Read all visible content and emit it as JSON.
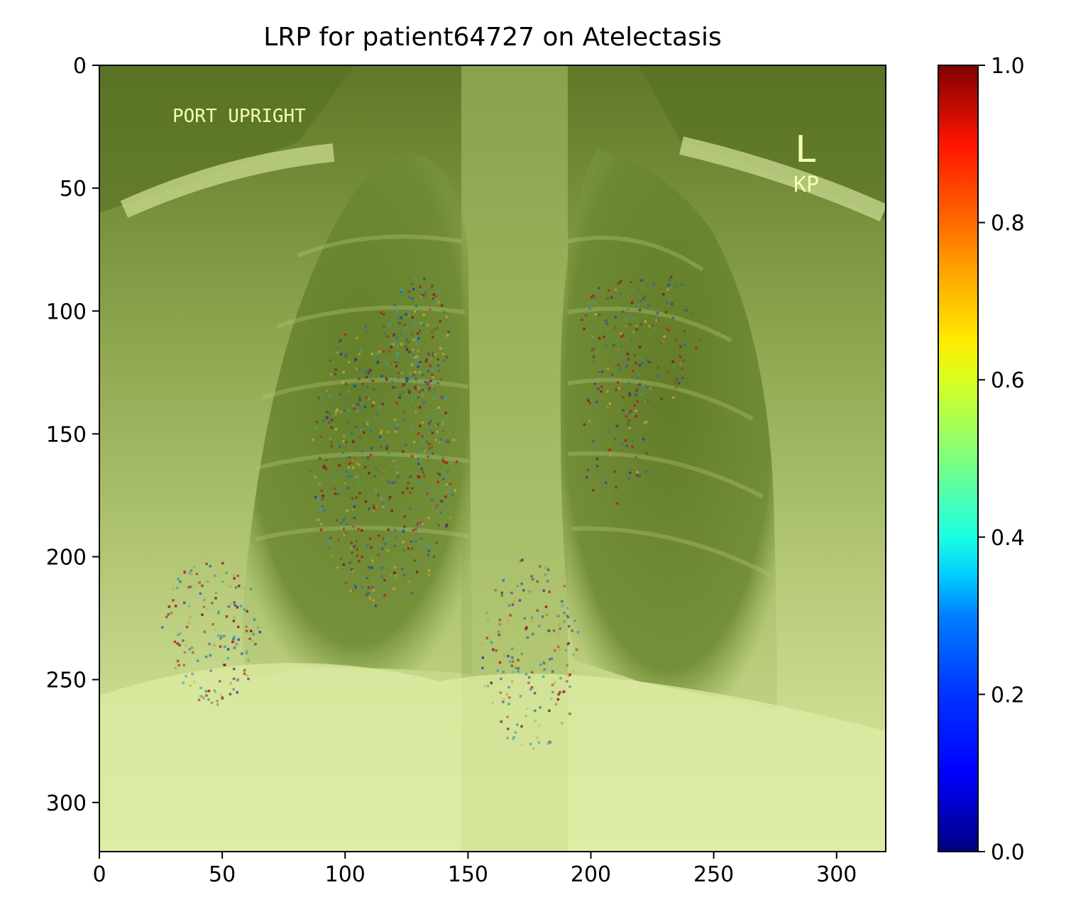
{
  "chart_data": {
    "type": "heatmap",
    "title": "LRP for patient64727 on Atelectasis",
    "xlabel": "",
    "ylabel": "",
    "xlim": [
      0,
      320
    ],
    "ylim": [
      320,
      0
    ],
    "x_ticks": [
      0,
      50,
      100,
      150,
      200,
      250,
      300
    ],
    "y_ticks": [
      0,
      50,
      100,
      150,
      200,
      250,
      300
    ],
    "grid": false,
    "colormap": "jet",
    "colorbar": {
      "min": 0.0,
      "max": 1.0,
      "ticks": [
        "0.0",
        "0.2",
        "0.4",
        "0.6",
        "0.8",
        "1.0"
      ],
      "tick_values": [
        0.0,
        0.2,
        0.4,
        0.6,
        0.8,
        1.0
      ],
      "colors": [
        "#00007f",
        "#0000ff",
        "#007fff",
        "#00e5f8",
        "#2affcc",
        "#7fff7f",
        "#c8ff36",
        "#ffeb00",
        "#ff8000",
        "#ff1400",
        "#7f0000"
      ]
    },
    "image_text": {
      "top_left": "PORT UPRIGHT",
      "top_right_letter": "L",
      "top_right_initials": "KP"
    },
    "overlay_tint": "#8fa84a"
  }
}
